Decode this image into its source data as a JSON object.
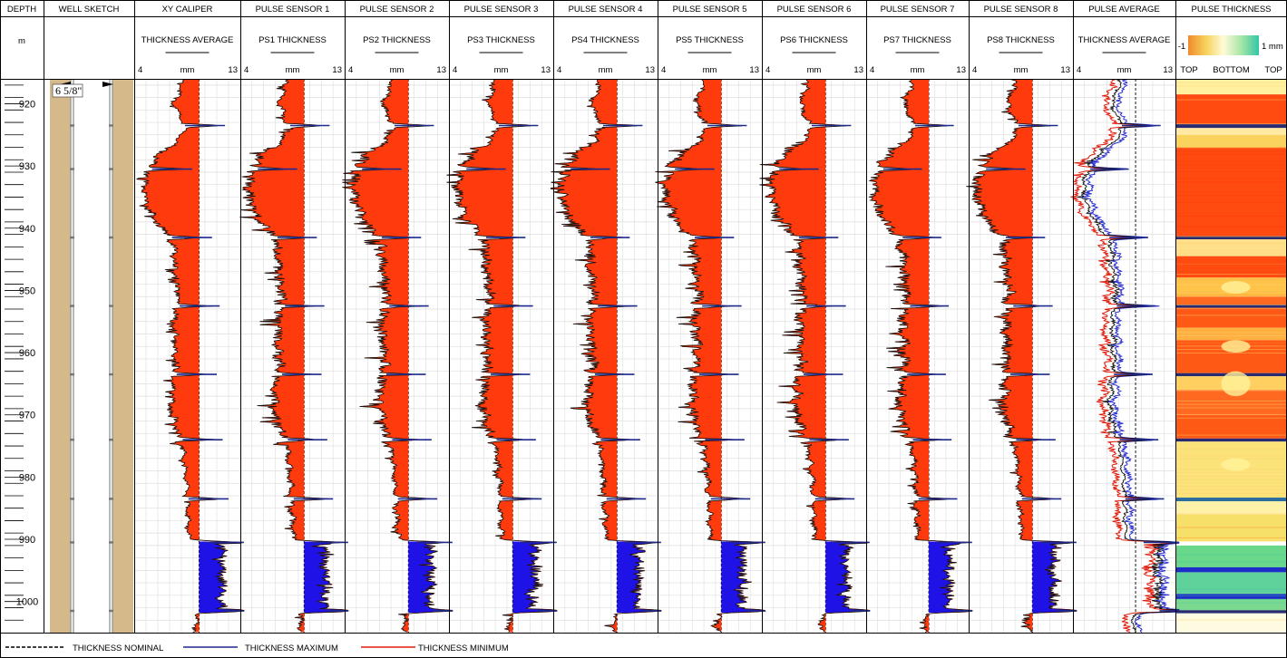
{
  "chart_data": {
    "type": "well-log",
    "depth_track": {
      "title": "DEPTH",
      "unit": "m",
      "ticks": [
        920,
        930,
        940,
        950,
        960,
        970,
        980,
        990,
        1000
      ],
      "range": [
        916,
        1005
      ]
    },
    "well_sketch": {
      "title": "WELL SKETCH",
      "casing_label": "6 5/8\""
    },
    "tracks": [
      {
        "title": "XY CALIPER",
        "subtitle": "THICKNESS AVERAGE",
        "scale_min": "4",
        "scale_unit": "mm",
        "scale_max": "13"
      },
      {
        "title": "PULSE SENSOR 1",
        "subtitle": "PS1 THICKNESS",
        "scale_min": "4",
        "scale_unit": "mm",
        "scale_max": "13"
      },
      {
        "title": "PULSE SENSOR 2",
        "subtitle": "PS2 THICKNESS",
        "scale_min": "4",
        "scale_unit": "mm",
        "scale_max": "13"
      },
      {
        "title": "PULSE SENSOR 3",
        "subtitle": "PS3 THICKNESS",
        "scale_min": "4",
        "scale_unit": "mm",
        "scale_max": "13"
      },
      {
        "title": "PULSE SENSOR 4",
        "subtitle": "PS4 THICKNESS",
        "scale_min": "4",
        "scale_unit": "mm",
        "scale_max": "13"
      },
      {
        "title": "PULSE SENSOR 5",
        "subtitle": "PS5 THICKNESS",
        "scale_min": "4",
        "scale_unit": "mm",
        "scale_max": "13"
      },
      {
        "title": "PULSE SENSOR 6",
        "subtitle": "PS6 THICKNESS",
        "scale_min": "4",
        "scale_unit": "mm",
        "scale_max": "13"
      },
      {
        "title": "PULSE SENSOR 7",
        "subtitle": "PS7 THICKNESS",
        "scale_min": "4",
        "scale_unit": "mm",
        "scale_max": "13"
      },
      {
        "title": "PULSE SENSOR 8",
        "subtitle": "PS8 THICKNESS",
        "scale_min": "4",
        "scale_unit": "mm",
        "scale_max": "13"
      },
      {
        "title": "PULSE AVERAGE",
        "subtitle": "THICKNESS AVERAGE",
        "scale_min": "4",
        "scale_unit": "mm",
        "scale_max": "13"
      }
    ],
    "image_track": {
      "title": "PULSE THICKNESS",
      "scale_min": "-1",
      "scale_max": "1 mm",
      "labels": [
        "TOP",
        "BOTTOM",
        "TOP"
      ]
    },
    "nominal_thickness_mm": 9.5,
    "thickness_profile": [
      {
        "depth": 916,
        "value": 8.3
      },
      {
        "depth": 918,
        "value": 8.0
      },
      {
        "depth": 920,
        "value": 7.5
      },
      {
        "depth": 922,
        "value": 8.0
      },
      {
        "depth": 924,
        "value": 8.4
      },
      {
        "depth": 926,
        "value": 7.8
      },
      {
        "depth": 928,
        "value": 6.5
      },
      {
        "depth": 930,
        "value": 5.6
      },
      {
        "depth": 932,
        "value": 5.2
      },
      {
        "depth": 934,
        "value": 5.1
      },
      {
        "depth": 936,
        "value": 5.4
      },
      {
        "depth": 938,
        "value": 5.8
      },
      {
        "depth": 940,
        "value": 6.6
      },
      {
        "depth": 942,
        "value": 7.4
      },
      {
        "depth": 944,
        "value": 7.7
      },
      {
        "depth": 946,
        "value": 7.6
      },
      {
        "depth": 948,
        "value": 7.8
      },
      {
        "depth": 950,
        "value": 8.0
      },
      {
        "depth": 952,
        "value": 7.9
      },
      {
        "depth": 954,
        "value": 7.7
      },
      {
        "depth": 956,
        "value": 7.6
      },
      {
        "depth": 958,
        "value": 7.8
      },
      {
        "depth": 960,
        "value": 7.7
      },
      {
        "depth": 962,
        "value": 7.9
      },
      {
        "depth": 964,
        "value": 7.5
      },
      {
        "depth": 966,
        "value": 7.6
      },
      {
        "depth": 968,
        "value": 7.3
      },
      {
        "depth": 970,
        "value": 7.5
      },
      {
        "depth": 972,
        "value": 7.8
      },
      {
        "depth": 974,
        "value": 8.1
      },
      {
        "depth": 976,
        "value": 8.3
      },
      {
        "depth": 978,
        "value": 8.4
      },
      {
        "depth": 980,
        "value": 8.5
      },
      {
        "depth": 982,
        "value": 8.6
      },
      {
        "depth": 984,
        "value": 8.6
      },
      {
        "depth": 986,
        "value": 8.7
      },
      {
        "depth": 988,
        "value": 8.7
      },
      {
        "depth": 990,
        "value": 8.8
      },
      {
        "depth": 991,
        "value": 11.6
      },
      {
        "depth": 994,
        "value": 11.5
      },
      {
        "depth": 997,
        "value": 11.6
      },
      {
        "depth": 1000,
        "value": 11.4
      },
      {
        "depth": 1001.5,
        "value": 11.6
      },
      {
        "depth": 1002,
        "value": 9.4
      },
      {
        "depth": 1005,
        "value": 9.4
      }
    ],
    "collar_depths": [
      923.5,
      930.5,
      941.5,
      952.5,
      963.5,
      974.0,
      983.5,
      990.5,
      1001.5
    ],
    "series": [
      {
        "name": "THICKNESS NOMINAL",
        "color": "#000000",
        "style": "dashed"
      },
      {
        "name": "THICKNESS MAXIMUM",
        "color": "#1d2a8c",
        "style": "solid"
      },
      {
        "name": "THICKNESS MINIMUM",
        "color": "#e01b0b",
        "style": "solid"
      }
    ],
    "colors": {
      "loss_fill": "#ff3a0c",
      "gain_fill": "#1f12e6",
      "sketch_tan": "#d6b98a",
      "grid": "#c8c8c8"
    }
  }
}
